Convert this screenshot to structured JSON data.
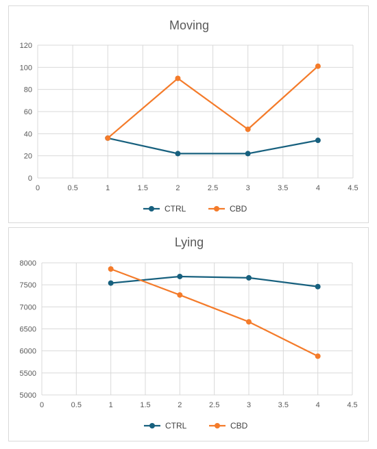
{
  "chart_data": [
    {
      "type": "line",
      "title": "Moving",
      "xlabel": "",
      "ylabel": "",
      "xlim": [
        0,
        4.5
      ],
      "ylim": [
        0,
        120
      ],
      "x_ticks": [
        "0",
        "0.5",
        "1",
        "1.5",
        "2",
        "2.5",
        "3",
        "3.5",
        "4",
        "4.5"
      ],
      "y_ticks": [
        "0",
        "20",
        "40",
        "60",
        "80",
        "100",
        "120"
      ],
      "grid": true,
      "legend": "bottom",
      "series": [
        {
          "name": "CTRL",
          "color": "#17607e",
          "x": [
            1,
            2,
            3,
            4
          ],
          "values": [
            36,
            22,
            22,
            34
          ]
        },
        {
          "name": "CBD",
          "color": "#f47b2a",
          "x": [
            1,
            2,
            3,
            4
          ],
          "values": [
            36,
            90,
            44,
            101
          ]
        }
      ]
    },
    {
      "type": "line",
      "title": "Lying",
      "xlabel": "",
      "ylabel": "",
      "xlim": [
        0,
        4.5
      ],
      "ylim": [
        5000,
        8000
      ],
      "x_ticks": [
        "0",
        "0.5",
        "1",
        "1.5",
        "2",
        "2.5",
        "3",
        "3.5",
        "4",
        "4.5"
      ],
      "y_ticks": [
        "5000",
        "5500",
        "6000",
        "6500",
        "7000",
        "7500",
        "8000"
      ],
      "grid": true,
      "legend": "bottom",
      "series": [
        {
          "name": "CTRL",
          "color": "#17607e",
          "x": [
            1,
            2,
            3,
            4
          ],
          "values": [
            7540,
            7690,
            7660,
            7460
          ]
        },
        {
          "name": "CBD",
          "color": "#f47b2a",
          "x": [
            1,
            2,
            3,
            4
          ],
          "values": [
            7860,
            7270,
            6660,
            5880
          ]
        }
      ]
    }
  ]
}
